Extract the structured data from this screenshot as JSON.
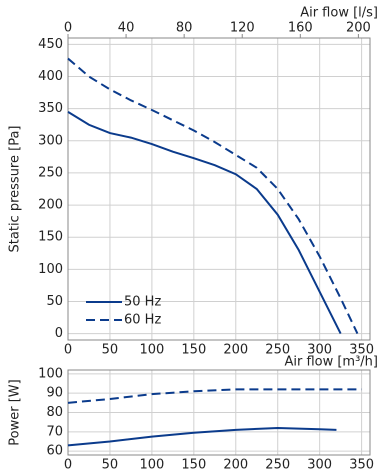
{
  "chart_data": [
    {
      "type": "line",
      "xlabel": "Air flow [m³/h]",
      "x2label": "Air flow [l/s]",
      "ylabel": "Static pressure [Pa]",
      "xlim": [
        0,
        360
      ],
      "xticks": [
        0,
        50,
        100,
        150,
        200,
        250,
        300,
        350
      ],
      "x2lim": [
        0,
        208
      ],
      "x2ticks": [
        0,
        40,
        80,
        120,
        160,
        200
      ],
      "ylim": [
        -10,
        460
      ],
      "yticks": [
        0,
        50,
        100,
        150,
        200,
        250,
        300,
        350,
        400,
        450
      ],
      "grid": true,
      "legend": "lower-left",
      "series": [
        {
          "name": "50 Hz",
          "color": "#0b3b8c",
          "dashed": false,
          "x": [
            0,
            25,
            50,
            75,
            100,
            125,
            150,
            175,
            200,
            225,
            250,
            275,
            300,
            325
          ],
          "values": [
            345,
            325,
            312,
            305,
            295,
            283,
            273,
            262,
            248,
            225,
            185,
            130,
            65,
            0
          ]
        },
        {
          "name": "60 Hz",
          "color": "#0b3b8c",
          "dashed": true,
          "x": [
            0,
            25,
            50,
            75,
            100,
            125,
            150,
            175,
            200,
            225,
            250,
            275,
            300,
            325,
            345
          ],
          "values": [
            428,
            400,
            380,
            363,
            348,
            332,
            316,
            298,
            278,
            258,
            225,
            178,
            120,
            55,
            0
          ]
        }
      ]
    },
    {
      "type": "line",
      "ylabel": "Power [W]",
      "xlim": [
        0,
        360
      ],
      "xticks": [
        0,
        50,
        100,
        150,
        200,
        250,
        300,
        350
      ],
      "ylim": [
        58,
        102
      ],
      "yticks": [
        60,
        70,
        80,
        90,
        100
      ],
      "grid": true,
      "series": [
        {
          "color": "#0b3b8c",
          "dashed": false,
          "x": [
            0,
            50,
            100,
            150,
            200,
            250,
            300,
            320
          ],
          "values": [
            63,
            65,
            67.5,
            69.5,
            71,
            72,
            71.3,
            71
          ]
        },
        {
          "color": "#0b3b8c",
          "dashed": true,
          "x": [
            0,
            50,
            100,
            150,
            200,
            250,
            300,
            350
          ],
          "values": [
            85,
            87,
            89.5,
            91,
            92,
            92,
            92,
            92
          ]
        }
      ]
    }
  ]
}
